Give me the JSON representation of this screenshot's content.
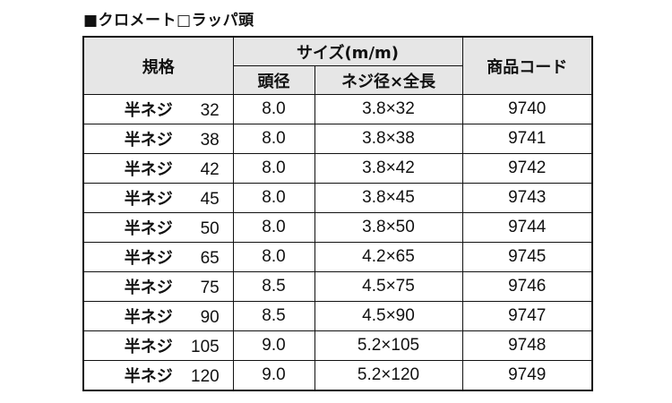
{
  "title": "■クロメート□ラッパ頭",
  "headers": {
    "spec": "規格",
    "size_group": "サイズ(m/m)",
    "head_dia": "頭径",
    "screw": "ネジ径×全長",
    "code": "商品コード"
  },
  "rows": [
    {
      "prefix": "半ネジ",
      "length": "32",
      "head": "8.0",
      "screw": "3.8×32",
      "code": "9740"
    },
    {
      "prefix": "半ネジ",
      "length": "38",
      "head": "8.0",
      "screw": "3.8×38",
      "code": "9741"
    },
    {
      "prefix": "半ネジ",
      "length": "42",
      "head": "8.0",
      "screw": "3.8×42",
      "code": "9742"
    },
    {
      "prefix": "半ネジ",
      "length": "45",
      "head": "8.0",
      "screw": "3.8×45",
      "code": "9743"
    },
    {
      "prefix": "半ネジ",
      "length": "50",
      "head": "8.0",
      "screw": "3.8×50",
      "code": "9744"
    },
    {
      "prefix": "半ネジ",
      "length": "65",
      "head": "8.0",
      "screw": "4.2×65",
      "code": "9745"
    },
    {
      "prefix": "半ネジ",
      "length": "75",
      "head": "8.5",
      "screw": "4.5×75",
      "code": "9746"
    },
    {
      "prefix": "半ネジ",
      "length": "90",
      "head": "8.5",
      "screw": "4.5×90",
      "code": "9747"
    },
    {
      "prefix": "半ネジ",
      "length": "105",
      "head": "9.0",
      "screw": "5.2×105",
      "code": "9748"
    },
    {
      "prefix": "半ネジ",
      "length": "120",
      "head": "9.0",
      "screw": "5.2×120",
      "code": "9749"
    }
  ]
}
